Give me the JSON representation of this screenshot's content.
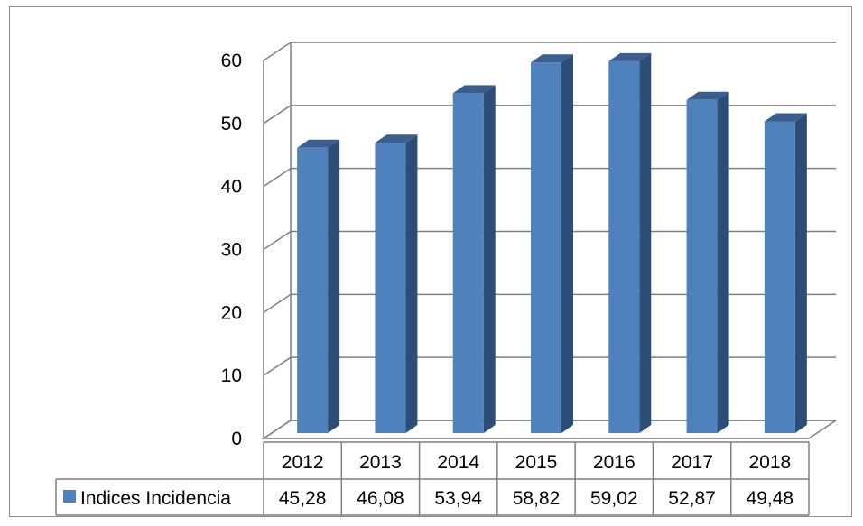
{
  "chart_data": {
    "type": "bar",
    "style": "3d-column-with-data-table",
    "categories": [
      "2012",
      "2013",
      "2014",
      "2015",
      "2016",
      "2017",
      "2018"
    ],
    "series": [
      {
        "name": "Indices Incidencia",
        "values": [
          45.28,
          46.08,
          53.94,
          58.82,
          59.02,
          52.87,
          49.48
        ],
        "value_labels": [
          "45,28",
          "46,08",
          "53,94",
          "58,82",
          "59,02",
          "52,87",
          "49,48"
        ],
        "color": "#4f81bd"
      }
    ],
    "y_ticks": [
      "0",
      "10",
      "20",
      "30",
      "40",
      "50",
      "60"
    ],
    "ylim": [
      0,
      60
    ],
    "grid": true,
    "legend": "in-data-table",
    "title": "",
    "xlabel": "",
    "ylabel": ""
  },
  "colors": {
    "bar_front": "#4f81bd",
    "bar_side": "#2c4d75",
    "bar_top": "#3a5f8f",
    "gridline": "#7f7f7f",
    "frame": "#8c8c8c"
  }
}
